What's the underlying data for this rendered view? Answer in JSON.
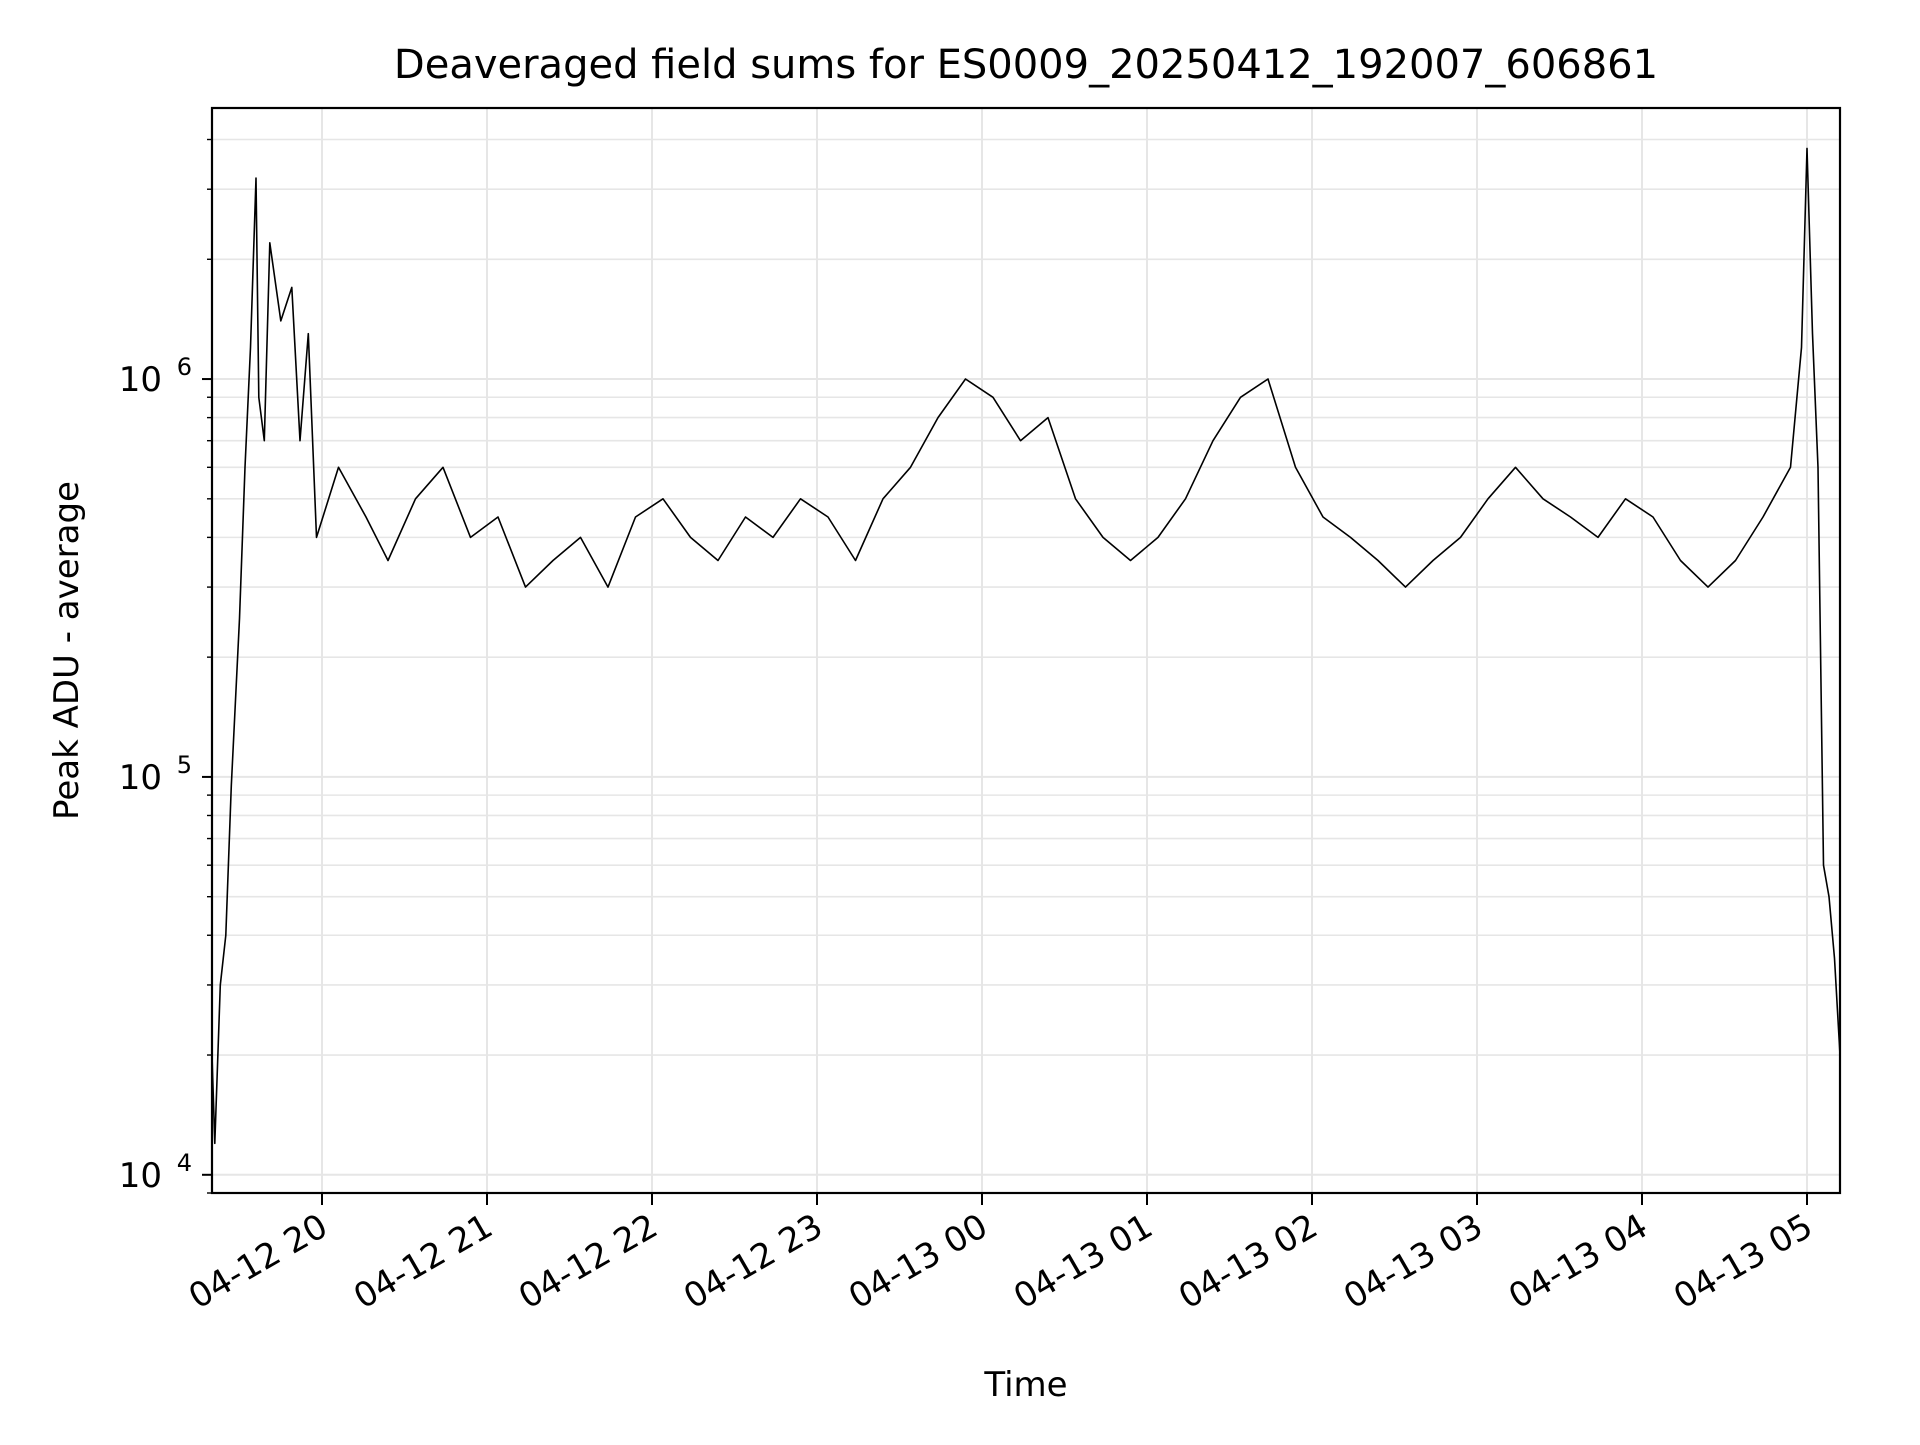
{
  "chart_data": {
    "type": "line",
    "title": "Deaveraged field sums for ES0009_20250412_192007_606861",
    "xlabel": "Time",
    "ylabel": "Peak ADU - average",
    "x_scale": "time",
    "y_scale": "log",
    "xlim": [
      "2025-04-12 19:20",
      "2025-04-13 05:12"
    ],
    "ylim": [
      9000,
      4800000
    ],
    "grid": true,
    "line_color": "#000000",
    "grid_color": "#e6e6e6",
    "x_ticks": [
      {
        "value": "2025-04-12 20:00",
        "label": "04-12 20"
      },
      {
        "value": "2025-04-12 21:00",
        "label": "04-12 21"
      },
      {
        "value": "2025-04-12 22:00",
        "label": "04-12 22"
      },
      {
        "value": "2025-04-12 23:00",
        "label": "04-12 23"
      },
      {
        "value": "2025-04-13 00:00",
        "label": "04-13 00"
      },
      {
        "value": "2025-04-13 01:00",
        "label": "04-13 01"
      },
      {
        "value": "2025-04-13 02:00",
        "label": "04-13 02"
      },
      {
        "value": "2025-04-13 03:00",
        "label": "04-13 03"
      },
      {
        "value": "2025-04-13 04:00",
        "label": "04-13 04"
      },
      {
        "value": "2025-04-13 05:00",
        "label": "04-13 05"
      }
    ],
    "y_ticks": [
      {
        "value": 10000,
        "base": "10",
        "exp": "4"
      },
      {
        "value": 100000,
        "base": "10",
        "exp": "5"
      },
      {
        "value": 1000000,
        "base": "10",
        "exp": "6"
      }
    ],
    "series": [
      {
        "x": [
          "2025-04-12 19:20",
          "2025-04-12 19:21",
          "2025-04-12 19:23",
          "2025-04-12 19:25",
          "2025-04-12 19:27",
          "2025-04-12 19:30",
          "2025-04-12 19:32",
          "2025-04-12 19:34",
          "2025-04-12 19:36",
          "2025-04-12 19:37",
          "2025-04-12 19:39",
          "2025-04-12 19:41",
          "2025-04-12 19:45",
          "2025-04-12 19:49",
          "2025-04-12 19:52",
          "2025-04-12 19:55",
          "2025-04-12 19:58",
          "2025-04-12 20:06",
          "2025-04-12 20:16",
          "2025-04-12 20:24",
          "2025-04-12 20:34",
          "2025-04-12 20:44",
          "2025-04-12 20:54",
          "2025-04-12 21:04",
          "2025-04-12 21:14",
          "2025-04-12 21:24",
          "2025-04-12 21:34",
          "2025-04-12 21:44",
          "2025-04-12 21:54",
          "2025-04-12 22:04",
          "2025-04-12 22:14",
          "2025-04-12 22:24",
          "2025-04-12 22:34",
          "2025-04-12 22:44",
          "2025-04-12 22:54",
          "2025-04-12 23:04",
          "2025-04-12 23:14",
          "2025-04-12 23:24",
          "2025-04-12 23:34",
          "2025-04-12 23:44",
          "2025-04-12 23:54",
          "2025-04-13 00:04",
          "2025-04-13 00:14",
          "2025-04-13 00:24",
          "2025-04-13 00:34",
          "2025-04-13 00:44",
          "2025-04-13 00:54",
          "2025-04-13 01:04",
          "2025-04-13 01:14",
          "2025-04-13 01:24",
          "2025-04-13 01:34",
          "2025-04-13 01:44",
          "2025-04-13 01:54",
          "2025-04-13 02:04",
          "2025-04-13 02:14",
          "2025-04-13 02:24",
          "2025-04-13 02:34",
          "2025-04-13 02:44",
          "2025-04-13 02:54",
          "2025-04-13 03:04",
          "2025-04-13 03:14",
          "2025-04-13 03:24",
          "2025-04-13 03:34",
          "2025-04-13 03:44",
          "2025-04-13 03:54",
          "2025-04-13 04:04",
          "2025-04-13 04:14",
          "2025-04-13 04:24",
          "2025-04-13 04:34",
          "2025-04-13 04:44",
          "2025-04-13 04:54",
          "2025-04-13 04:58",
          "2025-04-13 05:00",
          "2025-04-13 05:02",
          "2025-04-13 05:04",
          "2025-04-13 05:06",
          "2025-04-13 05:08",
          "2025-04-13 05:10",
          "2025-04-13 05:12"
        ],
        "y": [
          20000,
          12000,
          30000,
          40000,
          95000,
          250000,
          600000,
          1200000,
          3200000,
          900000,
          700000,
          2200000,
          1400000,
          1700000,
          700000,
          1300000,
          400000,
          600000,
          450000,
          350000,
          500000,
          600000,
          400000,
          450000,
          300000,
          350000,
          400000,
          300000,
          450000,
          500000,
          400000,
          350000,
          450000,
          400000,
          500000,
          450000,
          350000,
          500000,
          600000,
          800000,
          1000000,
          900000,
          700000,
          800000,
          500000,
          400000,
          350000,
          400000,
          500000,
          700000,
          900000,
          1000000,
          600000,
          450000,
          400000,
          350000,
          300000,
          350000,
          400000,
          500000,
          600000,
          500000,
          450000,
          400000,
          500000,
          450000,
          350000,
          300000,
          350000,
          450000,
          600000,
          1200000,
          3800000,
          1300000,
          600000,
          60000,
          50000,
          35000,
          20000
        ]
      }
    ]
  }
}
